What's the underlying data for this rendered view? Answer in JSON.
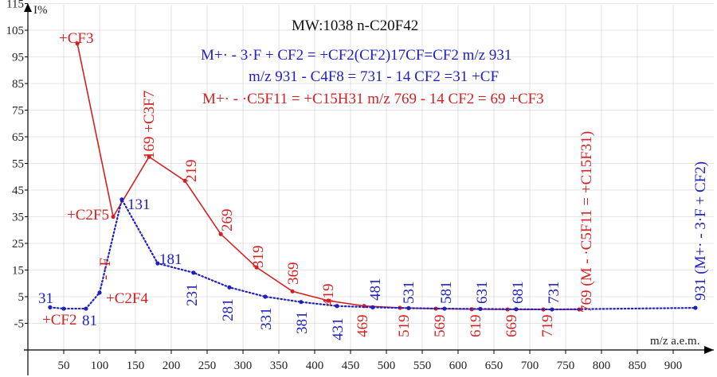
{
  "chart_data": {
    "type": "line",
    "title": "MW:1038  n-C20F42",
    "ylabel": "I%",
    "xlabel": "m/z  a.e.m.",
    "xlim": [
      0,
      950
    ],
    "ylim": [
      -15,
      117
    ],
    "x_ticks": [
      "50",
      "100",
      "150",
      "200",
      "250",
      "300",
      "350",
      "400",
      "450",
      "500",
      "550",
      "600",
      "650",
      "700",
      "750",
      "800",
      "850",
      "900"
    ],
    "y_ticks": [
      "115",
      "105",
      "95",
      "85",
      "75",
      "65",
      "55",
      "45",
      "35",
      "25",
      "15",
      "5",
      "-5"
    ],
    "grid": true,
    "series": [
      {
        "color": "#d42020",
        "style": "solid",
        "x": [
          69,
          119,
          169,
          219,
          269,
          319,
          369,
          419,
          469,
          519,
          569,
          619,
          669,
          719,
          769
        ],
        "y": [
          100,
          35,
          57.5,
          48.5,
          28.5,
          16,
          7,
          3.5,
          1.5,
          0.8,
          0.5,
          0.3,
          0.2,
          0.2,
          0.2
        ]
      },
      {
        "color": "#2020c0",
        "style": "dotted",
        "x": [
          31,
          50,
          81,
          100,
          131,
          181,
          231,
          281,
          331,
          381,
          431,
          481,
          531,
          581,
          631,
          681,
          731,
          931
        ],
        "y": [
          1,
          0.5,
          0.5,
          6.5,
          41.5,
          17.5,
          14,
          8.5,
          5,
          3,
          1.5,
          1,
          0.7,
          0.5,
          0.4,
          0.3,
          0.2,
          0.8
        ]
      }
    ],
    "annotations": [
      {
        "text": "+CF3",
        "color": "#d42020"
      },
      {
        "text": "+C2F5",
        "color": "#d42020"
      },
      {
        "text": "169 +C3F7",
        "color": "#d42020"
      },
      {
        "text": "+C2F4",
        "color": "#d42020"
      },
      {
        "text": "+CF2",
        "color": "#d42020"
      },
      {
        "text": "- ·F",
        "color": "#d42020"
      },
      {
        "text": "31",
        "color": "#2020c0"
      },
      {
        "text": "81",
        "color": "#2020c0"
      },
      {
        "text": "131",
        "color": "#2020c0"
      },
      {
        "text": "181",
        "color": "#2020c0"
      },
      {
        "text": "219",
        "color": "#d42020"
      },
      {
        "text": "269",
        "color": "#d42020"
      },
      {
        "text": "319",
        "color": "#d42020"
      },
      {
        "text": "369",
        "color": "#d42020"
      },
      {
        "text": "419",
        "color": "#d42020"
      },
      {
        "text": "469",
        "color": "#d42020"
      },
      {
        "text": "519",
        "color": "#d42020"
      },
      {
        "text": "569",
        "color": "#d42020"
      },
      {
        "text": "619",
        "color": "#d42020"
      },
      {
        "text": "669",
        "color": "#d42020"
      },
      {
        "text": "719",
        "color": "#d42020"
      },
      {
        "text": "769 (M - ·C5F11 = +C15F31)",
        "color": "#d42020"
      },
      {
        "text": "231",
        "color": "#2020c0"
      },
      {
        "text": "281",
        "color": "#2020c0"
      },
      {
        "text": "331",
        "color": "#2020c0"
      },
      {
        "text": "381",
        "color": "#2020c0"
      },
      {
        "text": "431",
        "color": "#2020c0"
      },
      {
        "text": "481",
        "color": "#2020c0"
      },
      {
        "text": "531",
        "color": "#2020c0"
      },
      {
        "text": "581",
        "color": "#2020c0"
      },
      {
        "text": "631",
        "color": "#2020c0"
      },
      {
        "text": "681",
        "color": "#2020c0"
      },
      {
        "text": "731",
        "color": "#2020c0"
      },
      {
        "text": "931 (M+· - 3·F + CF2)",
        "color": "#2020c0"
      }
    ],
    "equations": [
      {
        "text": "M+· - 3·F + CF2 = +CF2(CF2)17CF=CF2 m/z 931",
        "color": "#2020c0"
      },
      {
        "text": "m/z 931 - C4F8 = 731 - 14 CF2 =31 +CF",
        "color": "#2020c0"
      },
      {
        "text": "M+· - ·C5F11 = +C15H31 m/z 769 - 14 CF2 = 69 +CF3",
        "color": "#d42020"
      }
    ]
  }
}
